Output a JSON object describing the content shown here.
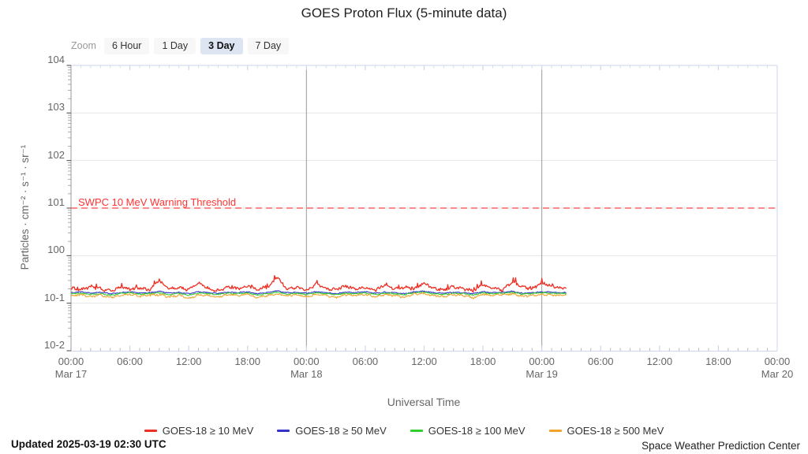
{
  "title": "GOES Proton Flux (5-minute data)",
  "toolbar": {
    "zoom_label": "Zoom",
    "buttons": [
      {
        "label": "6 Hour",
        "selected": false
      },
      {
        "label": "1 Day",
        "selected": false
      },
      {
        "label": "3 Day",
        "selected": true
      },
      {
        "label": "7 Day",
        "selected": false
      }
    ]
  },
  "y_axis": {
    "title": "Particles · cm⁻² · s⁻¹ · sr⁻¹",
    "tick_labels": [
      "104",
      "103",
      "102",
      "101",
      "100",
      "10-1",
      "10-2"
    ]
  },
  "x_axis": {
    "title": "Universal Time",
    "ticks": [
      {
        "hour": 0,
        "time": "00:00",
        "date": "Mar 17"
      },
      {
        "hour": 6,
        "time": "06:00"
      },
      {
        "hour": 12,
        "time": "12:00"
      },
      {
        "hour": 18,
        "time": "18:00"
      },
      {
        "hour": 24,
        "time": "00:00",
        "date": "Mar 18"
      },
      {
        "hour": 30,
        "time": "06:00"
      },
      {
        "hour": 36,
        "time": "12:00"
      },
      {
        "hour": 42,
        "time": "18:00"
      },
      {
        "hour": 48,
        "time": "00:00",
        "date": "Mar 19"
      },
      {
        "hour": 54,
        "time": "06:00"
      },
      {
        "hour": 60,
        "time": "12:00"
      },
      {
        "hour": 66,
        "time": "18:00"
      },
      {
        "hour": 72,
        "time": "00:00",
        "date": "Mar 20"
      }
    ]
  },
  "threshold": {
    "label": "SWPC 10 MeV Warning Threshold"
  },
  "footer": {
    "updated": "Updated 2025-03-19 02:30 UTC",
    "credit": "Space Weather Prediction Center"
  },
  "chart_data": {
    "type": "line",
    "title": "GOES Proton Flux (5-minute data)",
    "xlabel": "Universal Time",
    "ylabel": "Particles · cm⁻² · s⁻¹ · sr⁻¹",
    "y_scale": "log10",
    "y_log10_range": [
      -2,
      4
    ],
    "x_start": "2025-03-17 00:00 UTC",
    "x_range_hours": [
      0,
      72
    ],
    "x_major_tick_hours": 6,
    "day_boundary_hours": [
      24,
      48
    ],
    "grid": "horizontal decade lines on; vertical lines at day boundaries",
    "legend_position": "bottom center",
    "data_end_hour": 50.5,
    "sample_interval_hours": 1,
    "threshold": {
      "name": "SWPC 10 MeV Warning Threshold",
      "value": 10,
      "log10_value": 1,
      "color": "#ff4444"
    },
    "colors": {
      "grid": "#e6e6e6",
      "day_line": "#999999",
      "frame": "#ccd6eb",
      "axis": "#999999"
    },
    "series": [
      {
        "name": "GOES-18 ≥ 10 MeV",
        "color": "#ee2f24",
        "log10_flux": [
          -0.68,
          -0.72,
          -0.65,
          -0.7,
          -0.74,
          -0.66,
          -0.71,
          -0.68,
          -0.73,
          -0.52,
          -0.7,
          -0.67,
          -0.72,
          -0.58,
          -0.69,
          -0.74,
          -0.66,
          -0.7,
          -0.63,
          -0.72,
          -0.68,
          -0.45,
          -0.7,
          -0.66,
          -0.73,
          -0.6,
          -0.69,
          -0.71,
          -0.64,
          -0.7,
          -0.67,
          -0.73,
          -0.62,
          -0.7,
          -0.66,
          -0.71,
          -0.57,
          -0.69,
          -0.72,
          -0.65,
          -0.7,
          -0.74,
          -0.61,
          -0.68,
          -0.72,
          -0.55,
          -0.66,
          -0.7,
          -0.58,
          -0.64,
          -0.68
        ]
      },
      {
        "name": "GOES-18 ≥ 50 MeV",
        "color": "#3333cc",
        "log10_flux": [
          -0.78,
          -0.76,
          -0.79,
          -0.77,
          -0.8,
          -0.78,
          -0.76,
          -0.79,
          -0.78,
          -0.75,
          -0.79,
          -0.77,
          -0.8,
          -0.76,
          -0.78,
          -0.79,
          -0.77,
          -0.78,
          -0.76,
          -0.8,
          -0.78,
          -0.74,
          -0.78,
          -0.77,
          -0.79,
          -0.76,
          -0.78,
          -0.8,
          -0.77,
          -0.78,
          -0.76,
          -0.79,
          -0.77,
          -0.78,
          -0.8,
          -0.76,
          -0.75,
          -0.78,
          -0.79,
          -0.77,
          -0.78,
          -0.8,
          -0.76,
          -0.78,
          -0.77,
          -0.75,
          -0.79,
          -0.78,
          -0.76,
          -0.77,
          -0.78
        ]
      },
      {
        "name": "GOES-18 ≥ 100 MeV",
        "color": "#33cc33",
        "log10_flux": [
          -0.8,
          -0.79,
          -0.82,
          -0.8,
          -0.83,
          -0.8,
          -0.78,
          -0.81,
          -0.8,
          -0.78,
          -0.82,
          -0.79,
          -0.83,
          -0.79,
          -0.8,
          -0.82,
          -0.79,
          -0.8,
          -0.78,
          -0.83,
          -0.8,
          -0.77,
          -0.81,
          -0.79,
          -0.82,
          -0.78,
          -0.8,
          -0.82,
          -0.79,
          -0.8,
          -0.78,
          -0.82,
          -0.79,
          -0.8,
          -0.82,
          -0.78,
          -0.77,
          -0.8,
          -0.82,
          -0.79,
          -0.8,
          -0.83,
          -0.78,
          -0.8,
          -0.79,
          -0.77,
          -0.81,
          -0.8,
          -0.78,
          -0.79,
          -0.8
        ]
      },
      {
        "name": "GOES-18 ≥ 500 MeV",
        "color": "#f0a330",
        "log10_flux": [
          -0.84,
          -0.82,
          -0.86,
          -0.83,
          -0.88,
          -0.84,
          -0.81,
          -0.85,
          -0.83,
          -0.82,
          -0.87,
          -0.83,
          -0.9,
          -0.82,
          -0.84,
          -0.87,
          -0.82,
          -0.84,
          -0.81,
          -0.88,
          -0.84,
          -0.8,
          -0.85,
          -0.82,
          -0.87,
          -0.81,
          -0.84,
          -0.88,
          -0.82,
          -0.84,
          -0.81,
          -0.86,
          -0.82,
          -0.84,
          -0.87,
          -0.81,
          -0.8,
          -0.84,
          -0.86,
          -0.82,
          -0.84,
          -0.89,
          -0.81,
          -0.84,
          -0.82,
          -0.8,
          -0.85,
          -0.84,
          -0.81,
          -0.83,
          -0.84
        ]
      }
    ]
  }
}
